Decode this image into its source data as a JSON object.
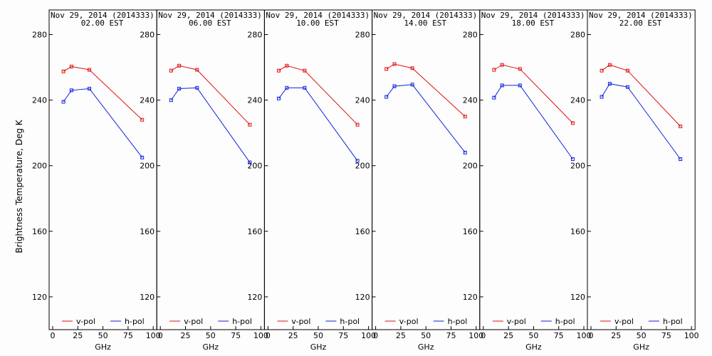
{
  "y_axis_label": "Brightness Temperature, Deg K",
  "colors": {
    "vpol": "#e01010",
    "hpol": "#1020e0",
    "frame": "#000000",
    "background": "#fdfdfd"
  },
  "chart_data": [
    {
      "type": "line",
      "title": "Nov 29, 2014 (2014333)",
      "subtitle": "02.00 EST",
      "xlabel": "GHz",
      "ylabel": "Brightness Temperature, Deg K",
      "xlim": [
        0,
        100
      ],
      "ylim": [
        100,
        295
      ],
      "xticks": [
        0,
        25,
        50,
        75,
        100
      ],
      "yticks": [
        120,
        160,
        200,
        240,
        280
      ],
      "grid": false,
      "legend": "bottom",
      "series": [
        {
          "name": "v-pol",
          "x": [
            10.7,
            18.7,
            36.5,
            89
          ],
          "values": [
            257.5,
            260.5,
            258.5,
            228
          ]
        },
        {
          "name": "h-pol",
          "x": [
            10.7,
            18.7,
            36.5,
            89
          ],
          "values": [
            239,
            246,
            247,
            205
          ]
        }
      ]
    },
    {
      "type": "line",
      "title": "Nov 29, 2014 (2014333)",
      "subtitle": "06.00 EST",
      "xlabel": "GHz",
      "xlim": [
        0,
        100
      ],
      "ylim": [
        100,
        295
      ],
      "xticks": [
        0,
        25,
        50,
        75,
        100
      ],
      "yticks": [
        120,
        160,
        200,
        240,
        280
      ],
      "grid": false,
      "legend": "bottom",
      "series": [
        {
          "name": "v-pol",
          "x": [
            10.7,
            18.7,
            36.5,
            89
          ],
          "values": [
            258,
            261,
            258.5,
            225
          ]
        },
        {
          "name": "h-pol",
          "x": [
            10.7,
            18.7,
            36.5,
            89
          ],
          "values": [
            240,
            247,
            247.5,
            202
          ]
        }
      ]
    },
    {
      "type": "line",
      "title": "Nov 29, 2014 (2014333)",
      "subtitle": "10.00 EST",
      "xlabel": "GHz",
      "xlim": [
        0,
        100
      ],
      "ylim": [
        100,
        295
      ],
      "xticks": [
        0,
        25,
        50,
        75,
        100
      ],
      "yticks": [
        120,
        160,
        200,
        240,
        280
      ],
      "grid": false,
      "legend": "bottom",
      "series": [
        {
          "name": "v-pol",
          "x": [
            10.7,
            18.7,
            36.5,
            89
          ],
          "values": [
            258,
            261,
            258,
            225
          ]
        },
        {
          "name": "h-pol",
          "x": [
            10.7,
            18.7,
            36.5,
            89
          ],
          "values": [
            241,
            247.5,
            247.5,
            203
          ]
        }
      ]
    },
    {
      "type": "line",
      "title": "Nov 29, 2014 (2014333)",
      "subtitle": "14.00 EST",
      "xlabel": "GHz",
      "xlim": [
        0,
        100
      ],
      "ylim": [
        100,
        295
      ],
      "xticks": [
        0,
        25,
        50,
        75,
        100
      ],
      "yticks": [
        120,
        160,
        200,
        240,
        280
      ],
      "grid": false,
      "legend": "bottom",
      "series": [
        {
          "name": "v-pol",
          "x": [
            10.7,
            18.7,
            36.5,
            89
          ],
          "values": [
            259,
            262,
            259.5,
            230
          ]
        },
        {
          "name": "h-pol",
          "x": [
            10.7,
            18.7,
            36.5,
            89
          ],
          "values": [
            242,
            248.5,
            249.5,
            208
          ]
        }
      ]
    },
    {
      "type": "line",
      "title": "Nov 29, 2014 (2014333)",
      "subtitle": "18.00 EST",
      "xlabel": "GHz",
      "xlim": [
        0,
        100
      ],
      "ylim": [
        100,
        295
      ],
      "xticks": [
        0,
        25,
        50,
        75,
        100
      ],
      "yticks": [
        120,
        160,
        200,
        240,
        280
      ],
      "grid": false,
      "legend": "bottom",
      "series": [
        {
          "name": "v-pol",
          "x": [
            10.7,
            18.7,
            36.5,
            89
          ],
          "values": [
            258.5,
            261.5,
            259,
            226
          ]
        },
        {
          "name": "h-pol",
          "x": [
            10.7,
            18.7,
            36.5,
            89
          ],
          "values": [
            241.5,
            249,
            249,
            204
          ]
        }
      ]
    },
    {
      "type": "line",
      "title": "Nov 29, 2014 (2014333)",
      "subtitle": "22.00 EST",
      "xlabel": "GHz",
      "xlim": [
        0,
        100
      ],
      "ylim": [
        100,
        295
      ],
      "xticks": [
        0,
        25,
        50,
        75,
        100
      ],
      "yticks": [
        120,
        160,
        200,
        240,
        280
      ],
      "grid": false,
      "legend": "bottom",
      "series": [
        {
          "name": "v-pol",
          "x": [
            10.7,
            18.7,
            36.5,
            89
          ],
          "values": [
            258,
            261.5,
            258,
            224
          ]
        },
        {
          "name": "h-pol",
          "x": [
            10.7,
            18.7,
            36.5,
            89
          ],
          "values": [
            242,
            250,
            248,
            204
          ]
        }
      ]
    }
  ]
}
